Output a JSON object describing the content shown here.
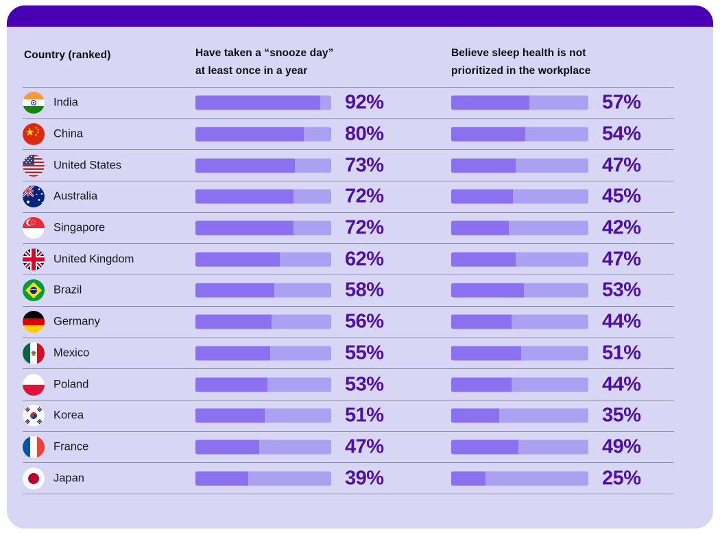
{
  "header": {
    "country_col": "Country (ranked)",
    "snooze_col_line1": "Have taken a “snooze day”",
    "snooze_col_line2": "at least once in a year",
    "sleep_col_line1": "Believe sleep health is not",
    "sleep_col_line2": "prioritized in the workplace"
  },
  "colors": {
    "top_bar": "#4802b2",
    "card_bg": "#d8d6f5",
    "bar_fill": "#8b70f0",
    "bar_track": "#aca0f3",
    "percent_text": "#4e0fa9",
    "label_text": "#17151d",
    "divider": "#8f8d9c"
  },
  "rows": [
    {
      "rank": 1,
      "country": "India",
      "flag_icon": "flag-india-icon",
      "snooze_value": 92,
      "snooze_label": "92%",
      "sleep_value": 57,
      "sleep_label": "57%"
    },
    {
      "rank": 2,
      "country": "China",
      "flag_icon": "flag-china-icon",
      "snooze_value": 80,
      "snooze_label": "80%",
      "sleep_value": 54,
      "sleep_label": "54%"
    },
    {
      "rank": 3,
      "country": "United States",
      "flag_icon": "flag-united-states-icon",
      "snooze_value": 73,
      "snooze_label": "73%",
      "sleep_value": 47,
      "sleep_label": "47%"
    },
    {
      "rank": 4,
      "country": "Australia",
      "flag_icon": "flag-australia-icon",
      "snooze_value": 72,
      "snooze_label": "72%",
      "sleep_value": 45,
      "sleep_label": "45%"
    },
    {
      "rank": 5,
      "country": "Singapore",
      "flag_icon": "flag-singapore-icon",
      "snooze_value": 72,
      "snooze_label": "72%",
      "sleep_value": 42,
      "sleep_label": "42%"
    },
    {
      "rank": 6,
      "country": "United Kingdom",
      "flag_icon": "flag-united-kingdom-icon",
      "snooze_value": 62,
      "snooze_label": "62%",
      "sleep_value": 47,
      "sleep_label": "47%"
    },
    {
      "rank": 7,
      "country": "Brazil",
      "flag_icon": "flag-brazil-icon",
      "snooze_value": 58,
      "snooze_label": "58%",
      "sleep_value": 53,
      "sleep_label": "53%"
    },
    {
      "rank": 8,
      "country": "Germany",
      "flag_icon": "flag-germany-icon",
      "snooze_value": 56,
      "snooze_label": "56%",
      "sleep_value": 44,
      "sleep_label": "44%"
    },
    {
      "rank": 9,
      "country": "Mexico",
      "flag_icon": "flag-mexico-icon",
      "snooze_value": 55,
      "snooze_label": "55%",
      "sleep_value": 51,
      "sleep_label": "51%"
    },
    {
      "rank": 10,
      "country": "Poland",
      "flag_icon": "flag-poland-icon",
      "snooze_value": 53,
      "snooze_label": "53%",
      "sleep_value": 44,
      "sleep_label": "44%"
    },
    {
      "rank": 11,
      "country": "Korea",
      "flag_icon": "flag-korea-icon",
      "snooze_value": 51,
      "snooze_label": "51%",
      "sleep_value": 35,
      "sleep_label": "35%"
    },
    {
      "rank": 12,
      "country": "France",
      "flag_icon": "flag-france-icon",
      "snooze_value": 47,
      "snooze_label": "47%",
      "sleep_value": 49,
      "sleep_label": "49%"
    },
    {
      "rank": 13,
      "country": "Japan",
      "flag_icon": "flag-japan-icon",
      "snooze_value": 39,
      "snooze_label": "39%",
      "sleep_value": 25,
      "sleep_label": "25%"
    }
  ],
  "chart_data": {
    "type": "bar",
    "categories": [
      "India",
      "China",
      "United States",
      "Australia",
      "Singapore",
      "United Kingdom",
      "Brazil",
      "Germany",
      "Mexico",
      "Poland",
      "Korea",
      "France",
      "Japan"
    ],
    "series": [
      {
        "name": "Have taken a “snooze day” at least once in a year",
        "values": [
          92,
          80,
          73,
          72,
          72,
          62,
          58,
          56,
          55,
          53,
          51,
          47,
          39
        ]
      },
      {
        "name": "Believe sleep health is not prioritized in the workplace",
        "values": [
          57,
          54,
          47,
          45,
          42,
          47,
          53,
          44,
          51,
          44,
          35,
          49,
          25
        ]
      }
    ],
    "title": "",
    "xlabel": "",
    "ylabel": "",
    "value_range": [
      0,
      100
    ],
    "value_unit": "%",
    "orientation": "horizontal",
    "grid": false,
    "legend_position": "column-headers"
  }
}
